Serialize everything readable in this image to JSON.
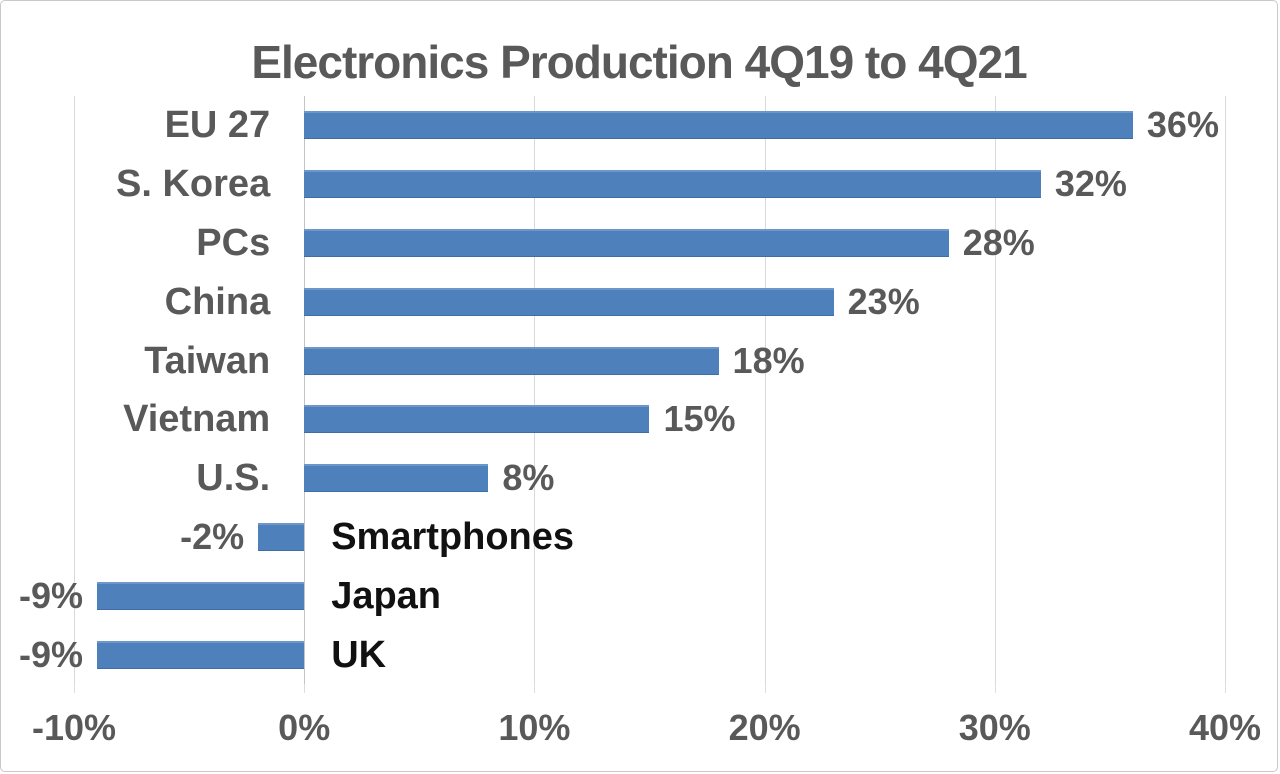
{
  "chart_data": {
    "type": "bar",
    "orientation": "horizontal",
    "title": "Electronics Production 4Q19 to 4Q21",
    "categories": [
      "EU 27",
      "S. Korea",
      "PCs",
      "China",
      "Taiwan",
      "Vietnam",
      "U.S.",
      "Smartphones",
      "Japan",
      "UK"
    ],
    "values": [
      36,
      32,
      28,
      23,
      18,
      15,
      8,
      -2,
      -9,
      -9
    ],
    "value_labels": [
      "36%",
      "32%",
      "28%",
      "23%",
      "18%",
      "15%",
      "8%",
      "-2%",
      "-9%",
      "-9%"
    ],
    "xlim": [
      -10,
      40
    ],
    "x_ticks": [
      -10,
      0,
      10,
      20,
      30,
      40
    ],
    "x_tick_labels": [
      "-10%",
      "0%",
      "10%",
      "20%",
      "30%",
      "40%"
    ],
    "grid": true,
    "legend": "none",
    "colors": {
      "bar": "#4e80bc",
      "bar_edge_light": "#6c97c9",
      "bar_edge_dark": "#3f6da6",
      "title_text": "#595959",
      "label_text_positive": "#595959",
      "label_text_negative": "#111111",
      "gridline": "#d9d9d9",
      "zero_line": "#c4c4c4",
      "frame_border": "#c9c9c9"
    }
  }
}
